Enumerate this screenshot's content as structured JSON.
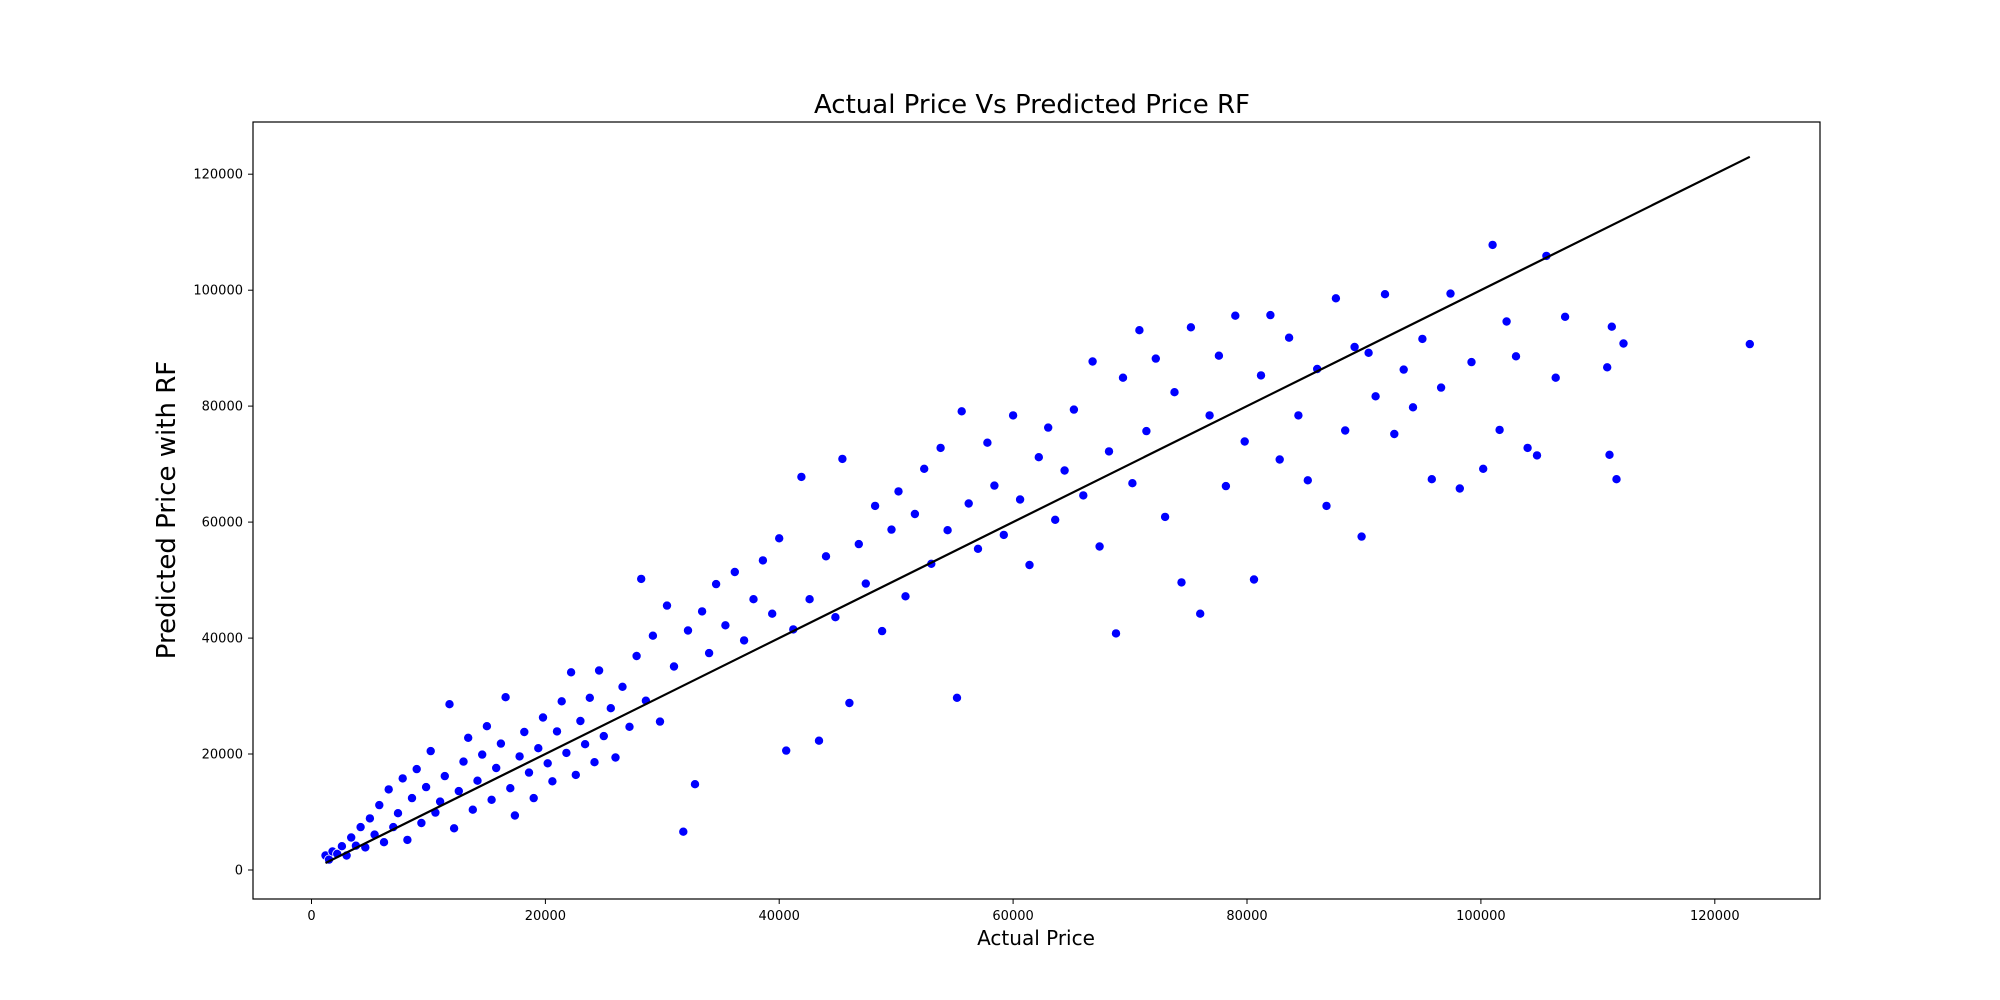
{
  "chart_data": {
    "type": "scatter",
    "title": "Actual Price  Vs  Predicted Price RF",
    "xlabel": "Actual Price",
    "ylabel": "Predicted Price with RF",
    "xlim": [
      -5000,
      129000
    ],
    "ylim": [
      -5000,
      129000
    ],
    "xticks": [
      0,
      20000,
      40000,
      60000,
      80000,
      100000,
      120000
    ],
    "yticks": [
      0,
      20000,
      40000,
      60000,
      80000,
      100000,
      120000
    ],
    "grid": false,
    "legend": "none",
    "marker_color": "#0000ff",
    "marker_edge": "#ffffff",
    "line_color": "#000000",
    "reference_line": {
      "x": [
        1200,
        123000
      ],
      "y": [
        1200,
        123000
      ]
    },
    "series": [
      {
        "values": [
          [
            1200,
            2500
          ],
          [
            1500,
            1800
          ],
          [
            1800,
            3200
          ],
          [
            2200,
            2800
          ],
          [
            2600,
            4100
          ],
          [
            3000,
            2500
          ],
          [
            3400,
            5600
          ],
          [
            3800,
            4200
          ],
          [
            4200,
            7400
          ],
          [
            4600,
            3900
          ],
          [
            5000,
            8900
          ],
          [
            5400,
            6100
          ],
          [
            5800,
            11200
          ],
          [
            6200,
            4800
          ],
          [
            6600,
            13900
          ],
          [
            7000,
            7400
          ],
          [
            7400,
            9800
          ],
          [
            7800,
            15800
          ],
          [
            8200,
            5200
          ],
          [
            8600,
            12400
          ],
          [
            9000,
            17400
          ],
          [
            9400,
            8100
          ],
          [
            9800,
            14300
          ],
          [
            10200,
            20500
          ],
          [
            10600,
            9900
          ],
          [
            11000,
            11800
          ],
          [
            11400,
            16200
          ],
          [
            11800,
            28600
          ],
          [
            12200,
            7200
          ],
          [
            12600,
            13600
          ],
          [
            13000,
            18700
          ],
          [
            13400,
            22800
          ],
          [
            13800,
            10400
          ],
          [
            14200,
            15400
          ],
          [
            14600,
            19900
          ],
          [
            15000,
            24800
          ],
          [
            15400,
            12100
          ],
          [
            15800,
            17600
          ],
          [
            16200,
            21800
          ],
          [
            16600,
            29800
          ],
          [
            17000,
            14100
          ],
          [
            17400,
            9400
          ],
          [
            17800,
            19600
          ],
          [
            18200,
            23800
          ],
          [
            18600,
            16800
          ],
          [
            19000,
            12400
          ],
          [
            19400,
            21000
          ],
          [
            19800,
            26300
          ],
          [
            20200,
            18400
          ],
          [
            20600,
            15300
          ],
          [
            21000,
            23900
          ],
          [
            21400,
            29100
          ],
          [
            21800,
            20200
          ],
          [
            22200,
            34100
          ],
          [
            22600,
            16400
          ],
          [
            23000,
            25700
          ],
          [
            23400,
            21700
          ],
          [
            23800,
            29700
          ],
          [
            24200,
            18600
          ],
          [
            24600,
            34400
          ],
          [
            25000,
            23100
          ],
          [
            25600,
            27900
          ],
          [
            26000,
            19400
          ],
          [
            26600,
            31600
          ],
          [
            27200,
            24700
          ],
          [
            27800,
            36900
          ],
          [
            28200,
            50200
          ],
          [
            28600,
            29200
          ],
          [
            29200,
            40400
          ],
          [
            29800,
            25600
          ],
          [
            30400,
            45600
          ],
          [
            31000,
            35100
          ],
          [
            31800,
            6600
          ],
          [
            32200,
            41300
          ],
          [
            32800,
            14800
          ],
          [
            33400,
            44600
          ],
          [
            34000,
            37400
          ],
          [
            34600,
            49300
          ],
          [
            35400,
            42200
          ],
          [
            36200,
            51400
          ],
          [
            37000,
            39600
          ],
          [
            37800,
            46700
          ],
          [
            38600,
            53400
          ],
          [
            39400,
            44200
          ],
          [
            40000,
            57200
          ],
          [
            40600,
            20600
          ],
          [
            41200,
            41500
          ],
          [
            41900,
            67800
          ],
          [
            42600,
            46700
          ],
          [
            43400,
            22300
          ],
          [
            44000,
            54100
          ],
          [
            44800,
            43600
          ],
          [
            45400,
            70900
          ],
          [
            46000,
            28800
          ],
          [
            46800,
            56200
          ],
          [
            47400,
            49400
          ],
          [
            48200,
            62800
          ],
          [
            48800,
            41200
          ],
          [
            49600,
            58700
          ],
          [
            50200,
            65300
          ],
          [
            50800,
            47200
          ],
          [
            51600,
            61400
          ],
          [
            52400,
            69200
          ],
          [
            53000,
            52800
          ],
          [
            53800,
            72800
          ],
          [
            54400,
            58600
          ],
          [
            55200,
            29700
          ],
          [
            55600,
            79100
          ],
          [
            56200,
            63200
          ],
          [
            57000,
            55400
          ],
          [
            57800,
            73700
          ],
          [
            58400,
            66300
          ],
          [
            59200,
            57800
          ],
          [
            60000,
            78400
          ],
          [
            60600,
            63900
          ],
          [
            61400,
            52600
          ],
          [
            62200,
            71200
          ],
          [
            63000,
            76300
          ],
          [
            63600,
            60400
          ],
          [
            64400,
            68900
          ],
          [
            65200,
            79400
          ],
          [
            66000,
            64600
          ],
          [
            66800,
            87700
          ],
          [
            67400,
            55800
          ],
          [
            68200,
            72200
          ],
          [
            68800,
            40800
          ],
          [
            69400,
            84900
          ],
          [
            70200,
            66700
          ],
          [
            70800,
            93100
          ],
          [
            71400,
            75700
          ],
          [
            72200,
            88200
          ],
          [
            73000,
            60900
          ],
          [
            73800,
            82400
          ],
          [
            74400,
            49600
          ],
          [
            75200,
            93600
          ],
          [
            76000,
            44200
          ],
          [
            76800,
            78400
          ],
          [
            77600,
            88700
          ],
          [
            78200,
            66200
          ],
          [
            79000,
            95600
          ],
          [
            79800,
            73900
          ],
          [
            80600,
            50100
          ],
          [
            81200,
            85300
          ],
          [
            82000,
            95700
          ],
          [
            82800,
            70800
          ],
          [
            83600,
            91800
          ],
          [
            84400,
            78400
          ],
          [
            85200,
            67200
          ],
          [
            86000,
            86400
          ],
          [
            86800,
            62800
          ],
          [
            87600,
            98600
          ],
          [
            88400,
            75800
          ],
          [
            89200,
            90200
          ],
          [
            89800,
            57500
          ],
          [
            90400,
            89200
          ],
          [
            91000,
            81700
          ],
          [
            91800,
            99300
          ],
          [
            92600,
            75200
          ],
          [
            93400,
            86300
          ],
          [
            94200,
            79800
          ],
          [
            95000,
            91600
          ],
          [
            95800,
            67400
          ],
          [
            96600,
            83200
          ],
          [
            97400,
            99400
          ],
          [
            98200,
            65800
          ],
          [
            99200,
            87600
          ],
          [
            100200,
            69200
          ],
          [
            101000,
            107800
          ],
          [
            101600,
            75900
          ],
          [
            102200,
            94600
          ],
          [
            103000,
            88600
          ],
          [
            104000,
            72800
          ],
          [
            104800,
            71500
          ],
          [
            105600,
            105900
          ],
          [
            106400,
            84900
          ],
          [
            107200,
            95400
          ],
          [
            110800,
            86700
          ],
          [
            111000,
            71600
          ],
          [
            111200,
            93700
          ],
          [
            111600,
            67400
          ],
          [
            112200,
            90800
          ],
          [
            123000,
            90700
          ]
        ]
      }
    ]
  }
}
